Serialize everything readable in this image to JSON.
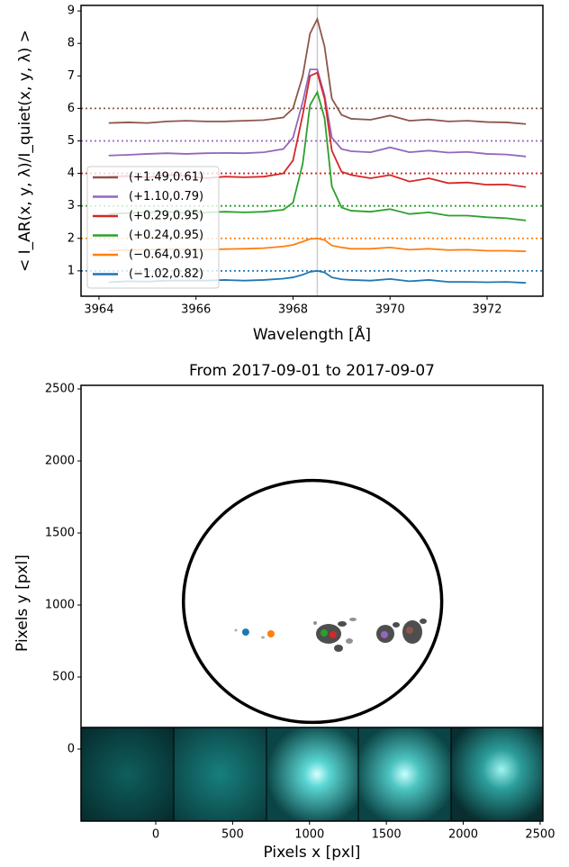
{
  "chart_data": [
    {
      "type": "line",
      "xlabel": "Wavelength [Å]",
      "ylabel": "< I_AR(x, y, λ)/I_quiet(x, y, λ) >",
      "x": [
        3964.2,
        3964.6,
        3965.0,
        3965.4,
        3965.8,
        3966.2,
        3966.6,
        3967.0,
        3967.4,
        3967.8,
        3968.0,
        3968.2,
        3968.35,
        3968.5,
        3968.65,
        3968.8,
        3969.0,
        3969.2,
        3969.6,
        3970.0,
        3970.4,
        3970.8,
        3971.2,
        3971.6,
        3972.0,
        3972.4,
        3972.8
      ],
      "series": [
        {
          "name": "(+1.49,0.61)",
          "color": "#8c564b",
          "values": [
            5.55,
            5.57,
            5.55,
            5.6,
            5.62,
            5.6,
            5.6,
            5.62,
            5.64,
            5.72,
            6.0,
            7.0,
            8.3,
            8.75,
            7.9,
            6.3,
            5.8,
            5.68,
            5.65,
            5.78,
            5.62,
            5.66,
            5.6,
            5.62,
            5.58,
            5.57,
            5.52
          ]
        },
        {
          "name": "(+1.10,0.79)",
          "color": "#9467bd",
          "values": [
            4.55,
            4.57,
            4.6,
            4.62,
            4.6,
            4.62,
            4.63,
            4.62,
            4.65,
            4.75,
            5.1,
            6.2,
            7.2,
            7.2,
            6.4,
            5.1,
            4.75,
            4.68,
            4.65,
            4.8,
            4.65,
            4.7,
            4.64,
            4.66,
            4.6,
            4.58,
            4.52
          ]
        },
        {
          "name": "(+0.29,0.95)",
          "color": "#d62728",
          "values": [
            3.9,
            3.92,
            3.88,
            3.95,
            3.92,
            3.85,
            3.9,
            3.88,
            3.9,
            4.0,
            4.4,
            5.8,
            7.0,
            7.1,
            6.3,
            4.7,
            4.05,
            3.95,
            3.85,
            3.95,
            3.75,
            3.85,
            3.7,
            3.72,
            3.65,
            3.66,
            3.58
          ]
        },
        {
          "name": "(+0.24,0.95)",
          "color": "#2ca02c",
          "values": [
            2.75,
            2.78,
            2.8,
            2.82,
            2.78,
            2.8,
            2.82,
            2.8,
            2.82,
            2.88,
            3.1,
            4.3,
            6.1,
            6.5,
            5.7,
            3.6,
            2.95,
            2.85,
            2.82,
            2.9,
            2.75,
            2.8,
            2.7,
            2.7,
            2.65,
            2.62,
            2.55
          ]
        },
        {
          "name": "(−0.64,0.91)",
          "color": "#ff7f0e",
          "values": [
            1.62,
            1.64,
            1.65,
            1.67,
            1.66,
            1.65,
            1.67,
            1.68,
            1.7,
            1.75,
            1.8,
            1.9,
            1.98,
            2.0,
            1.95,
            1.78,
            1.72,
            1.68,
            1.68,
            1.72,
            1.65,
            1.68,
            1.64,
            1.65,
            1.62,
            1.62,
            1.6
          ]
        },
        {
          "name": "(−1.02,0.82)",
          "color": "#1f77b4",
          "values": [
            0.65,
            0.68,
            0.67,
            0.7,
            0.7,
            0.7,
            0.72,
            0.7,
            0.72,
            0.76,
            0.8,
            0.88,
            0.97,
            1.0,
            0.95,
            0.8,
            0.74,
            0.72,
            0.7,
            0.75,
            0.68,
            0.72,
            0.66,
            0.66,
            0.65,
            0.66,
            0.63
          ]
        }
      ],
      "hlines": [
        {
          "y": 6,
          "color": "#8c564b"
        },
        {
          "y": 5,
          "color": "#9467bd"
        },
        {
          "y": 4,
          "color": "#d62728"
        },
        {
          "y": 3,
          "color": "#2ca02c"
        },
        {
          "y": 2,
          "color": "#ff7f0e"
        },
        {
          "y": 1,
          "color": "#1f77b4"
        }
      ],
      "vline": {
        "x": 3968.5,
        "color": "#cccccc"
      },
      "xlim": [
        3963.63,
        3973.15
      ],
      "ylim": [
        0.22,
        9.17
      ],
      "xticks": [
        3964,
        3966,
        3968,
        3970,
        3972
      ],
      "yticks": [
        1,
        2,
        3,
        4,
        5,
        6,
        7,
        8,
        9
      ],
      "legend": "lower left"
    },
    {
      "type": "scatter",
      "title": "From 2017-09-01 to 2017-09-07",
      "xlabel": "Pixels x [pxl]",
      "ylabel": "Pixels y [pxl]",
      "limb": {
        "cx": 1020,
        "cy": 1025,
        "r": 840
      },
      "points": [
        {
          "x": 585,
          "y": 812,
          "color": "#1f77b4"
        },
        {
          "x": 749,
          "y": 800,
          "color": "#ff7f0e"
        },
        {
          "x": 1095,
          "y": 806,
          "color": "#2ca02c"
        },
        {
          "x": 1153,
          "y": 794,
          "color": "#d62728"
        },
        {
          "x": 1487,
          "y": 794,
          "color": "#9467bd"
        },
        {
          "x": 1651,
          "y": 825,
          "color": "#8c564b"
        }
      ],
      "xlim": [
        -486,
        2518
      ],
      "ylim": [
        -500,
        2525
      ],
      "xticks": [
        0,
        500,
        1000,
        1500,
        2000,
        2500
      ],
      "yticks": [
        0,
        500,
        1000,
        1500,
        2000,
        2500
      ]
    }
  ]
}
